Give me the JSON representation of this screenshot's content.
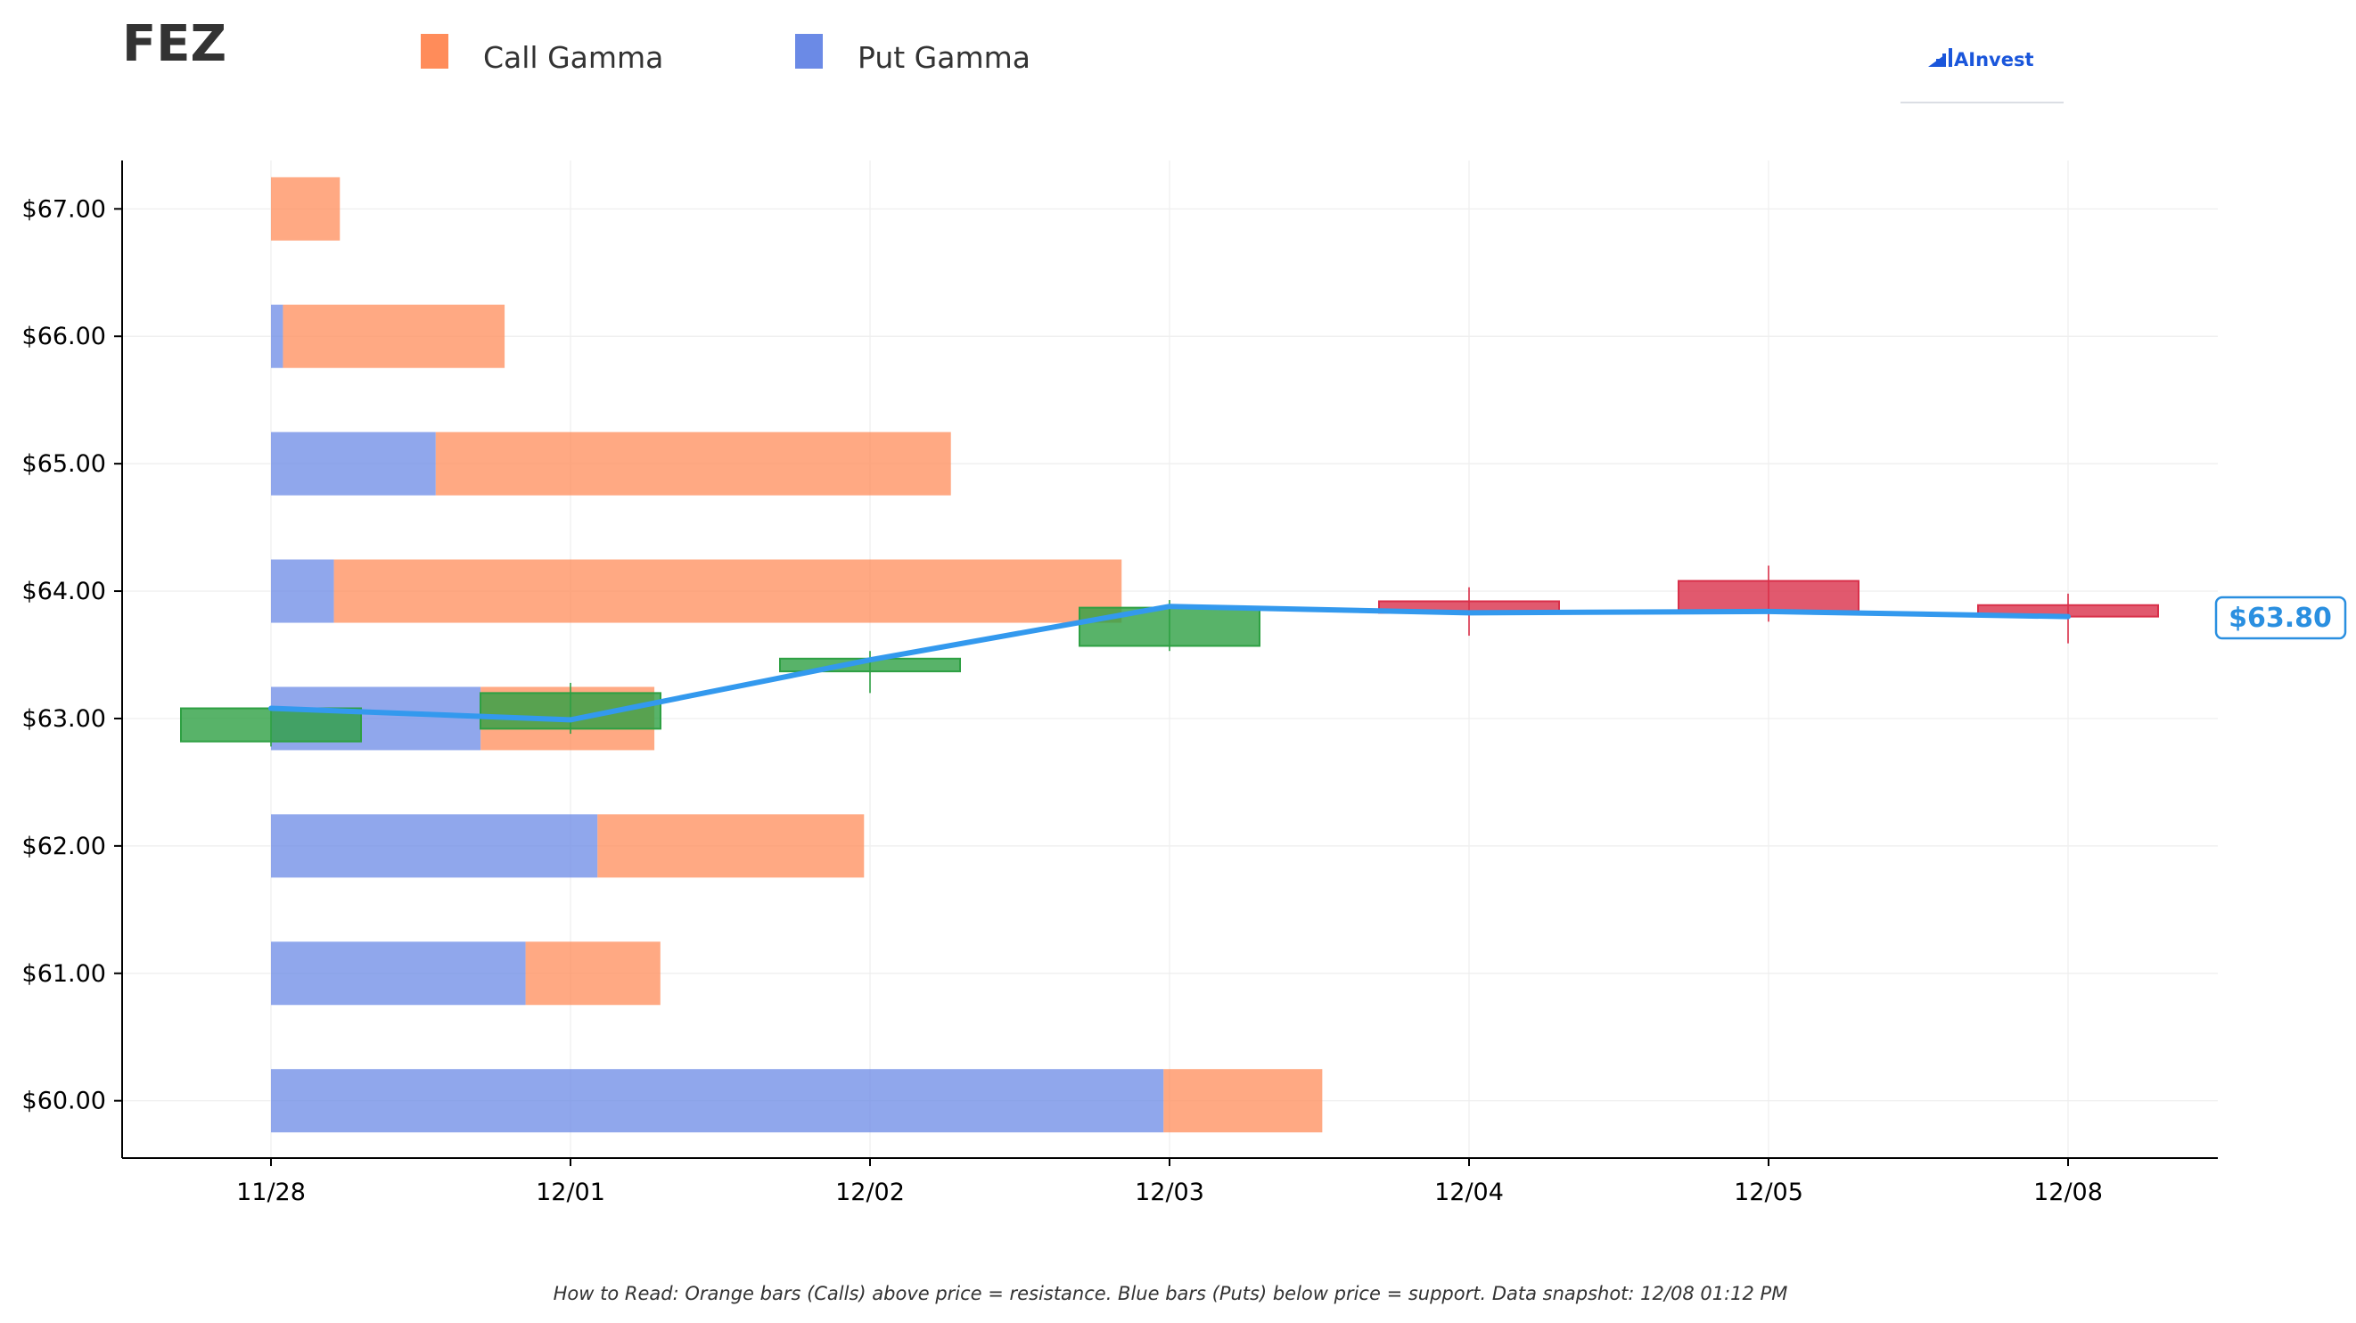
{
  "ticker": "FEZ",
  "legend": [
    {
      "label": "Call Gamma",
      "color": "#ff8c5a"
    },
    {
      "label": "Put Gamma",
      "color": "#6b8ae6"
    }
  ],
  "brand": {
    "name": "AInvest",
    "color": "#1a56db"
  },
  "footer_note": "How to Read: Orange bars (Calls) above price = resistance. Blue bars (Puts) below price = support. Data snapshot: 12/08 01:12 PM",
  "price_badge": {
    "label": "$63.80",
    "color": "#2a8fe0"
  },
  "colors": {
    "call": "#ff8c5a",
    "put": "#6b8ae6",
    "up": "#2ea043",
    "down": "#d9304a",
    "line": "#3399ee",
    "axis": "#000000",
    "grid": "#eeeeee"
  },
  "chart_data": {
    "type": "bar",
    "title": "FEZ",
    "x_categories": [
      "11/28",
      "12/01",
      "12/02",
      "12/03",
      "12/04",
      "12/05",
      "12/08"
    ],
    "ylim": [
      59.55,
      67.38
    ],
    "y_ticks": [
      "$60.00",
      "$61.00",
      "$62.00",
      "$63.00",
      "$64.00",
      "$65.00",
      "$66.00",
      "$67.00"
    ],
    "y_tick_values": [
      60,
      61,
      62,
      63,
      64,
      65,
      66,
      67
    ],
    "grid": true,
    "gamma_strikes": [
      {
        "strike": 67,
        "put": 0.0,
        "call": 0.23
      },
      {
        "strike": 66,
        "put": 0.04,
        "call": 0.74
      },
      {
        "strike": 65,
        "put": 0.55,
        "call": 1.72
      },
      {
        "strike": 64,
        "put": 0.21,
        "call": 2.63
      },
      {
        "strike": 63,
        "put": 0.7,
        "call": 0.58
      },
      {
        "strike": 62,
        "put": 1.09,
        "call": 0.89
      },
      {
        "strike": 61,
        "put": 0.85,
        "call": 0.45
      },
      {
        "strike": 60,
        "put": 2.98,
        "call": 0.53
      }
    ],
    "candles": [
      {
        "date": "11/28",
        "open": 62.82,
        "close": 63.08,
        "high": 63.08,
        "low": 62.78
      },
      {
        "date": "12/01",
        "open": 62.92,
        "close": 63.2,
        "high": 63.28,
        "low": 62.88
      },
      {
        "date": "12/02",
        "open": 63.37,
        "close": 63.47,
        "high": 63.53,
        "low": 63.2
      },
      {
        "date": "12/03",
        "open": 63.57,
        "close": 63.87,
        "high": 63.93,
        "low": 63.53
      },
      {
        "date": "12/04",
        "open": 63.92,
        "close": 63.83,
        "high": 64.03,
        "low": 63.65
      },
      {
        "date": "12/05",
        "open": 64.08,
        "close": 63.84,
        "high": 64.2,
        "low": 63.76
      },
      {
        "date": "12/08",
        "open": 63.89,
        "close": 63.8,
        "high": 63.98,
        "low": 63.59
      }
    ],
    "price_line": [
      63.08,
      62.99,
      63.46,
      63.88,
      63.83,
      63.84,
      63.8
    ],
    "last_price": 63.8
  }
}
